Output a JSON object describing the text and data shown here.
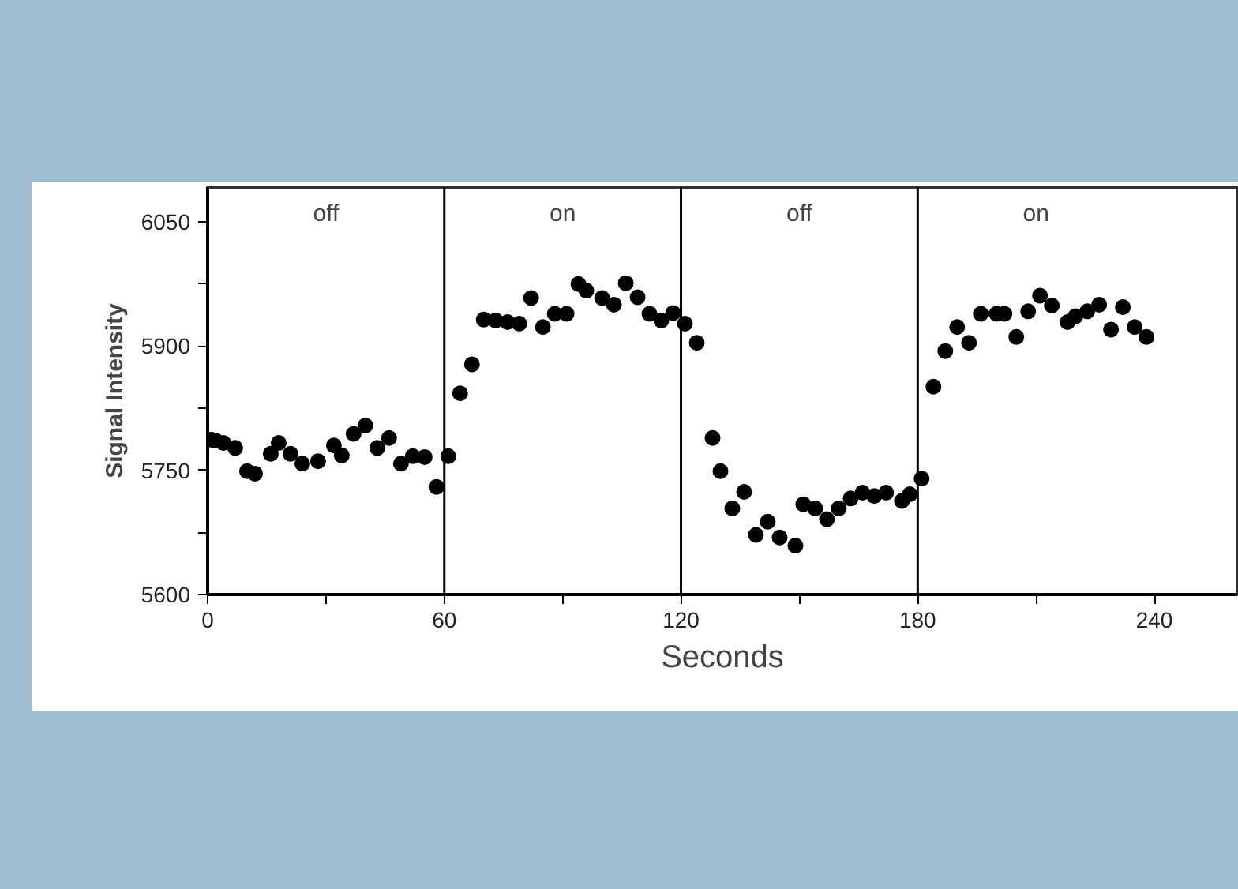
{
  "chart_data": {
    "type": "scatter",
    "xlabel": "Seconds",
    "ylabel": "Signal Intensity",
    "xlim": [
      0,
      261
    ],
    "ylim": [
      5600,
      6092
    ],
    "xticks": [
      0,
      {
        "value": 30,
        "label": null
      },
      60,
      {
        "value": 90,
        "label": null
      },
      120,
      {
        "value": 150,
        "label": null
      },
      180,
      {
        "value": 210,
        "label": null
      },
      240
    ],
    "yticks": [
      5600,
      {
        "value": 5675,
        "label": null
      },
      5750,
      {
        "value": 5825,
        "label": null
      },
      5900,
      {
        "value": 5975,
        "label": null
      },
      6050
    ],
    "grid": false,
    "marker": "circle",
    "ref_lines": [
      {
        "axis": "x",
        "value": 60,
        "color": "#000000"
      },
      {
        "axis": "x",
        "value": 120,
        "color": "#000000"
      },
      {
        "axis": "x",
        "value": 180,
        "color": "#000000"
      }
    ],
    "annotations": [
      "off",
      "on",
      "off",
      "on"
    ],
    "series": [
      {
        "color": "#000000",
        "x": [
          1,
          2,
          4,
          7,
          10,
          12,
          16,
          18,
          21,
          24,
          28,
          32,
          34,
          37,
          40,
          43,
          46,
          49,
          52,
          55,
          58,
          61,
          64,
          67,
          70,
          73,
          76,
          79,
          82,
          85,
          88,
          91,
          94,
          96,
          100,
          103,
          106,
          109,
          112,
          115,
          118,
          121,
          124,
          128,
          130,
          133,
          136,
          139,
          142,
          145,
          149,
          151,
          154,
          157,
          160,
          163,
          166,
          169,
          172,
          176,
          178,
          181,
          184,
          187,
          190,
          193,
          196,
          200,
          202,
          205,
          208,
          211,
          214,
          218,
          220,
          223,
          226,
          229,
          232,
          235,
          238
        ],
        "values": [
          5787,
          5786,
          5783,
          5777,
          5749,
          5746,
          5770,
          5783,
          5770,
          5758,
          5761,
          5780,
          5768,
          5794,
          5804,
          5777,
          5789,
          5758,
          5767,
          5766,
          5730,
          5767,
          5843,
          5878,
          5932,
          5931,
          5929,
          5927,
          5958,
          5923,
          5939,
          5939,
          5975,
          5967,
          5958,
          5950,
          5976,
          5959,
          5939,
          5931,
          5940,
          5927,
          5904,
          5789,
          5749,
          5704,
          5724,
          5672,
          5688,
          5669,
          5659,
          5709,
          5704,
          5691,
          5704,
          5716,
          5723,
          5719,
          5723,
          5713,
          5721,
          5740,
          5851,
          5894,
          5923,
          5904,
          5939,
          5939,
          5939,
          5911,
          5942,
          5961,
          5949,
          5929,
          5936,
          5942,
          5950,
          5920,
          5947,
          5923,
          5911
        ]
      }
    ]
  }
}
